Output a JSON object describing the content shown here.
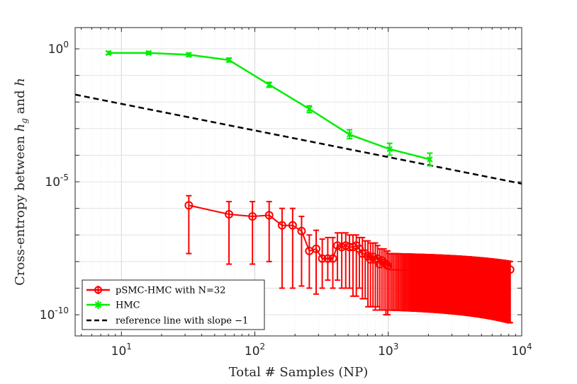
{
  "chart_data": {
    "type": "line",
    "xscale": "log",
    "yscale": "log",
    "xlim": [
      4.5,
      10000
    ],
    "ylim": [
      1.6e-11,
      6.3
    ],
    "grid": true,
    "xlabel": "Total # Samples (NP)",
    "ylabel_parts": [
      "Cross-entropy between ",
      "h",
      "g",
      " and ",
      "h"
    ],
    "xticks": [
      {
        "value": 10,
        "base": "10",
        "exp": "1"
      },
      {
        "value": 100,
        "base": "10",
        "exp": "2"
      },
      {
        "value": 1000,
        "base": "10",
        "exp": "3"
      },
      {
        "value": 10000,
        "base": "10",
        "exp": "4"
      }
    ],
    "yticks": [
      {
        "value": 1,
        "base": "10",
        "exp": "0"
      },
      {
        "value": 1e-05,
        "base": "10",
        "exp": "-5"
      },
      {
        "value": 1e-10,
        "base": "10",
        "exp": "-10"
      }
    ],
    "legend_position": "bottom-left",
    "series": [
      {
        "name": "pSMC-HMC with N=32",
        "color": "#ff0000",
        "marker": "circle",
        "x": [
          32,
          64,
          96,
          128,
          160,
          192,
          224,
          256,
          288,
          320,
          352,
          384,
          416,
          448,
          480,
          512,
          544,
          576,
          608,
          640,
          672,
          704,
          736,
          768,
          800,
          832,
          864,
          896,
          928,
          960,
          992
        ],
        "y": [
          1.3e-06,
          6e-07,
          5e-07,
          5.5e-07,
          2.3e-07,
          2.3e-07,
          1.4e-07,
          2.5e-08,
          3e-08,
          1.3e-08,
          1.3e-08,
          1.3e-08,
          4e-08,
          3.5e-08,
          4e-08,
          3.5e-08,
          3.5e-08,
          4e-08,
          3e-08,
          2e-08,
          2e-08,
          1.6e-08,
          1.2e-08,
          1.5e-08,
          1.2e-08,
          1.3e-08,
          8e-09,
          1.1e-08,
          9e-09,
          8e-09,
          7e-09
        ],
        "y_lower": [
          2e-08,
          8e-09,
          8e-09,
          1e-08,
          1e-09,
          1e-09,
          1.2e-09,
          1e-09,
          6e-10,
          1e-09,
          2e-09,
          1e-09,
          2e-09,
          1e-09,
          1e-09,
          1e-09,
          5e-10,
          5e-10,
          1e-09,
          4e-10,
          4e-10,
          2e-10,
          2e-10,
          2e-10,
          1.5e-10,
          2e-10,
          1.5e-10,
          1.5e-10,
          1.5e-10,
          1e-10,
          1e-10
        ],
        "y_upper": [
          3e-06,
          1.8e-06,
          1.8e-06,
          1.8e-06,
          1e-06,
          1e-06,
          5e-07,
          1e-07,
          1.5e-07,
          7e-08,
          8e-08,
          8e-08,
          1.2e-07,
          1.2e-07,
          1.2e-07,
          1e-07,
          1e-07,
          1e-07,
          8e-08,
          8e-08,
          6e-08,
          6e-08,
          5e-08,
          5e-08,
          5e-08,
          4e-08,
          3e-08,
          3e-08,
          3e-08,
          2.5e-08,
          2.5e-08
        ],
        "dense_band": {
          "x_start": 1000,
          "x_end": 8192,
          "step": 32,
          "center_start": 5e-09,
          "center_end": 1.1e-09,
          "lower_start": 1.5e-10,
          "lower_end": 5e-11,
          "upper_start": 2e-08,
          "upper_end": 1e-08
        },
        "last_point": {
          "x": 8192,
          "y": 5e-09
        }
      },
      {
        "name": "HMC",
        "color": "#00ee00",
        "marker": "x",
        "x": [
          8,
          16,
          32,
          64,
          128,
          256,
          512,
          1024,
          2048
        ],
        "y": [
          0.7,
          0.7,
          0.6,
          0.38,
          0.045,
          0.0055,
          0.0006,
          0.00017,
          7e-05
        ],
        "y_lower": [
          0.62,
          0.62,
          0.52,
          0.32,
          0.036,
          0.004,
          0.00042,
          0.0001,
          4e-05
        ],
        "y_upper": [
          0.8,
          0.8,
          0.7,
          0.45,
          0.055,
          0.0072,
          0.0009,
          0.00028,
          0.00012
        ]
      },
      {
        "name": "reference line with slope −1",
        "color": "#000000",
        "marker": "none",
        "dashed": true,
        "x": [
          4.5,
          10000
        ],
        "y": [
          0.019,
          8.5e-06
        ]
      }
    ]
  }
}
